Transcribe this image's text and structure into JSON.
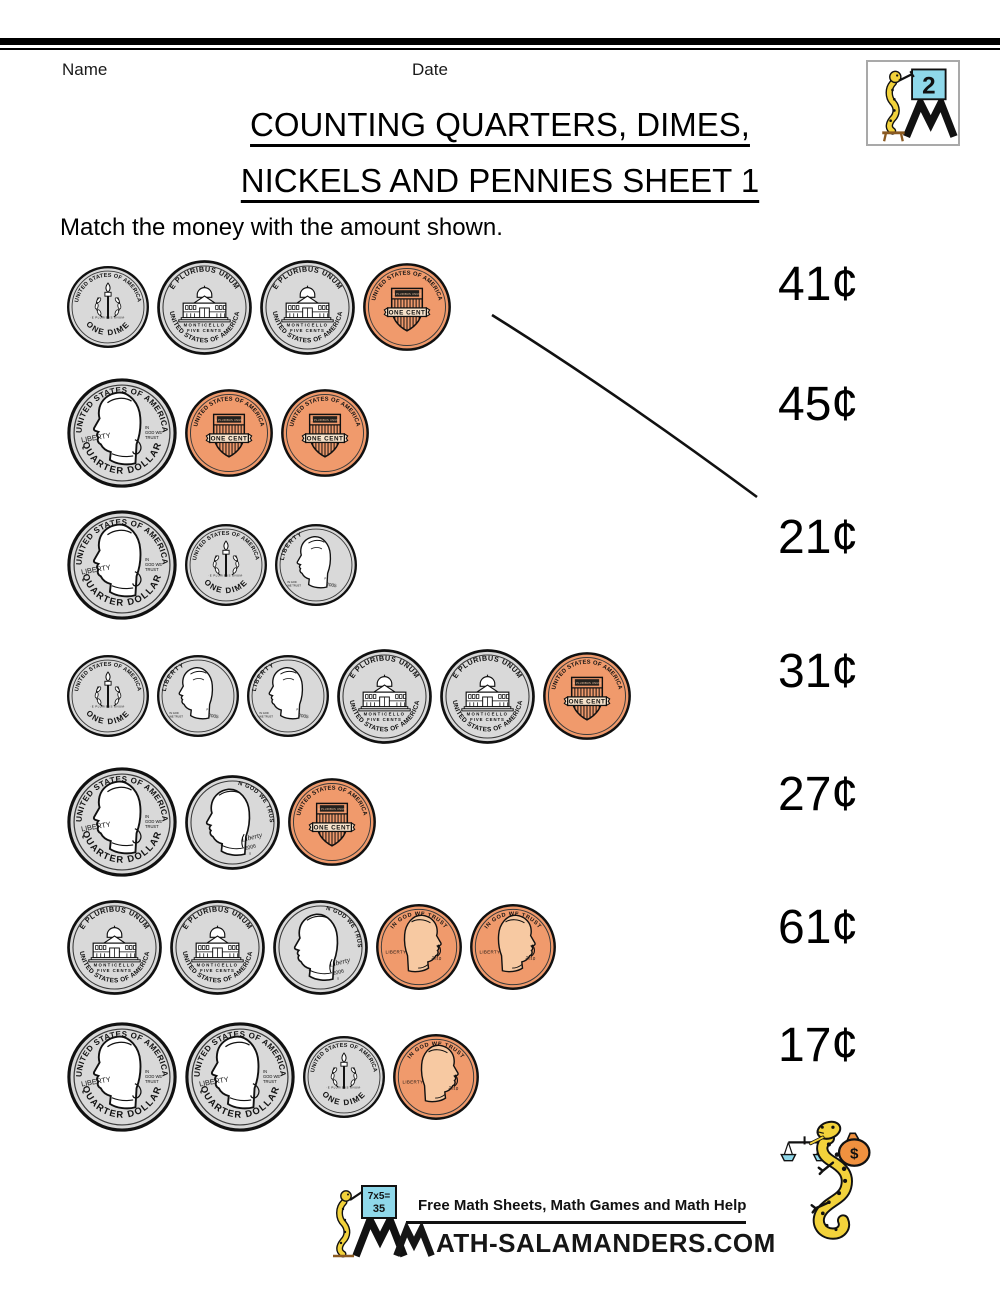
{
  "header": {
    "name_label": "Name",
    "date_label": "Date",
    "grade_badge": "2",
    "title_line1": "COUNTING QUARTERS, DIMES,",
    "title_line2": "NICKELS AND PENNIES SHEET 1",
    "instruction": "Match the money with the amount shown."
  },
  "matching": {
    "rows": [
      {
        "coins": [
          "dime-reverse",
          "nickel-reverse",
          "nickel-reverse",
          "penny-reverse"
        ],
        "total_cents": 21
      },
      {
        "coins": [
          "quarter-obverse",
          "penny-reverse",
          "penny-reverse"
        ],
        "total_cents": 27
      },
      {
        "coins": [
          "quarter-obverse",
          "dime-reverse",
          "dime-obverse"
        ],
        "total_cents": 45
      },
      {
        "coins": [
          "dime-reverse",
          "dime-obverse",
          "dime-obverse",
          "nickel-reverse",
          "nickel-reverse",
          "penny-reverse"
        ],
        "total_cents": 41
      },
      {
        "coins": [
          "quarter-obverse",
          "nickel-obverse",
          "penny-reverse"
        ],
        "total_cents": 31
      },
      {
        "coins": [
          "nickel-reverse",
          "nickel-reverse",
          "nickel-obverse",
          "penny-obverse",
          "penny-obverse"
        ],
        "total_cents": 17
      },
      {
        "coins": [
          "quarter-obverse",
          "quarter-obverse",
          "dime-reverse",
          "penny-obverse"
        ],
        "total_cents": 61
      }
    ],
    "amounts": [
      "41¢",
      "45¢",
      "21¢",
      "31¢",
      "27¢",
      "61¢",
      "17¢"
    ],
    "example_match": {
      "row_index": 0,
      "amount_label": "21¢"
    }
  },
  "coin_art": {
    "quarter-obverse": {
      "top": "UNITED STATES OF AMERICA",
      "bottom": "QUARTER DOLLAR",
      "left": "LIBERTY",
      "right": "IN GOD WE TRUST"
    },
    "nickel-reverse": {
      "top": "E PLURIBUS UNUM",
      "center1": "MONTICELLO",
      "center2": "FIVE CENTS",
      "bottom": "UNITED STATES OF AMERICA"
    },
    "nickel-obverse": {
      "arc": "IN GOD WE TRUST",
      "script": "Liberty",
      "year": "2006",
      "mint": "S"
    },
    "dime-reverse": {
      "top": "UNITED STATES OF AMERICA",
      "middle": "·E PLURIBUS UNUM·",
      "bottom": "ONE DIME"
    },
    "dime-obverse": {
      "left": "LIBERTY",
      "small": "IN GOD WE TRUST",
      "mint": "P",
      "year": "2005"
    },
    "penny-reverse": {
      "top": "UNITED STATES OF AMERICA",
      "chief": "E PLURIBUS UNUM",
      "banner": "ONE CENT"
    },
    "penny-obverse": {
      "top": "IN GOD WE TRUST",
      "left": "LIBERTY",
      "year": "2010"
    }
  },
  "footer": {
    "tagline": "Free Math Sheets, Math Games and Math Help",
    "site_text": "ATH-SALAMANDERS.COM",
    "board_line1": "7x5=",
    "board_line2": "35"
  },
  "illustration": {
    "money_bag_symbol": "$"
  },
  "colors": {
    "silver": "#d9d9d9",
    "penny": "#F09A6C",
    "cyan": "#8FD8EA",
    "salamander_yellow": "#F2D23B",
    "bag_orange": "#F0913F"
  }
}
